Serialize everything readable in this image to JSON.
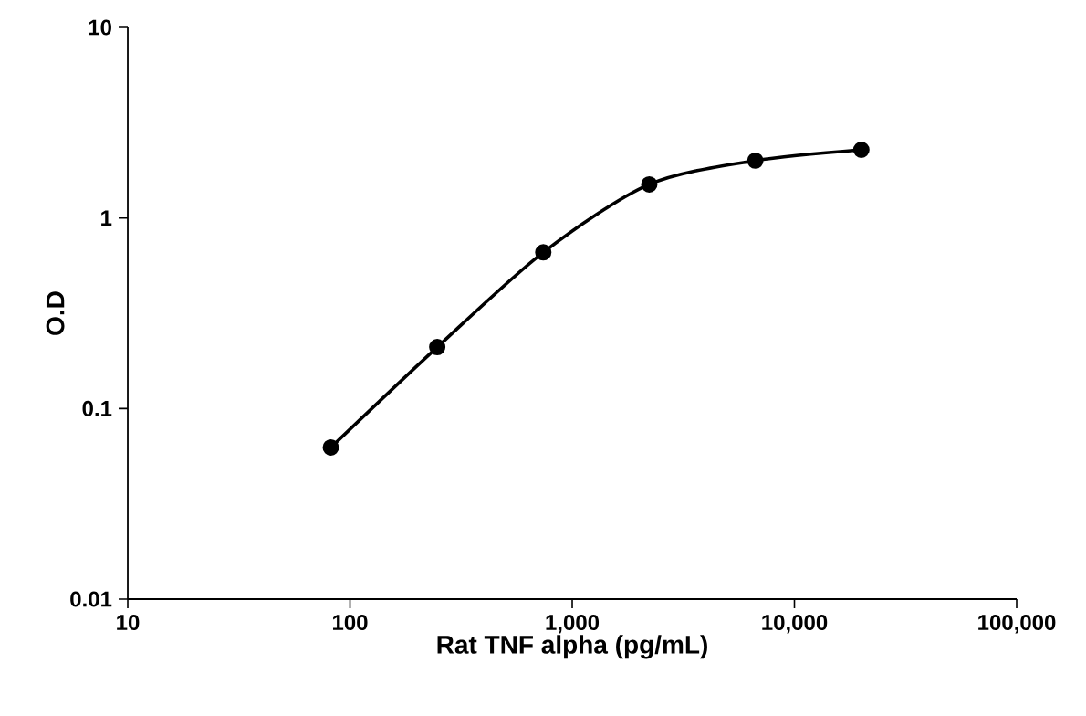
{
  "chart_data": {
    "type": "line",
    "xlabel": "Rat TNF alpha (pg/mL)",
    "ylabel": "O.D",
    "log": "xy",
    "marker": "circle",
    "line_style": "solid",
    "grid": false,
    "x": [
      82,
      247,
      741,
      2222,
      6667,
      20000
    ],
    "series": [
      {
        "color": "#000000",
        "values": [
          0.0625,
          0.21,
          0.66,
          1.5,
          2.0,
          2.28
        ]
      }
    ],
    "xlim": [
      10,
      100000
    ],
    "xticks": [
      10,
      100,
      {
        "value": 1000,
        "label": "1,000"
      },
      {
        "value": 10000,
        "label": "10,000"
      },
      {
        "value": 100000,
        "label": "100,000"
      }
    ],
    "ylim": [
      0.01,
      10
    ],
    "yticks": [
      0.01,
      0.1,
      1,
      10
    ]
  }
}
